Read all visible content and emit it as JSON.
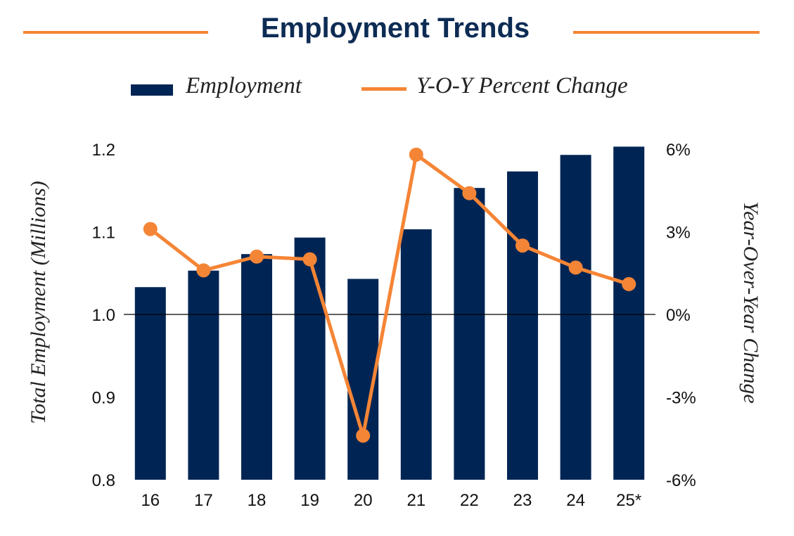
{
  "chart_data": {
    "type": "bar+line",
    "title": "Employment Trends",
    "categories": [
      "16",
      "17",
      "18",
      "19",
      "20",
      "21",
      "22",
      "23",
      "24",
      "25*"
    ],
    "series": [
      {
        "name": "Employment",
        "type": "bar",
        "axis": "left",
        "values": [
          1.033,
          1.053,
          1.073,
          1.093,
          1.043,
          1.103,
          1.153,
          1.173,
          1.193,
          1.203
        ]
      },
      {
        "name": "Y-O-Y Percent Change",
        "type": "line",
        "axis": "right",
        "values": [
          3.1,
          1.6,
          2.1,
          2.0,
          -4.4,
          5.8,
          4.4,
          2.5,
          1.7,
          1.1
        ]
      }
    ],
    "ylabel": "Total Employment (Millions)",
    "y2label": "Year-Over-Year Change",
    "ylim": [
      0.8,
      1.2
    ],
    "y2lim": [
      -6,
      6
    ],
    "yticks": [
      "0.8",
      "0.9",
      "1.0",
      "1.1",
      "1.2"
    ],
    "y2ticks": [
      "-6%",
      "-3%",
      "0%",
      "3%",
      "6%"
    ],
    "legend_position": "top",
    "grid": false,
    "colors": {
      "bar": "#002554",
      "line": "#F58536",
      "rule": "#F58536",
      "title": "#0D2C54"
    }
  }
}
